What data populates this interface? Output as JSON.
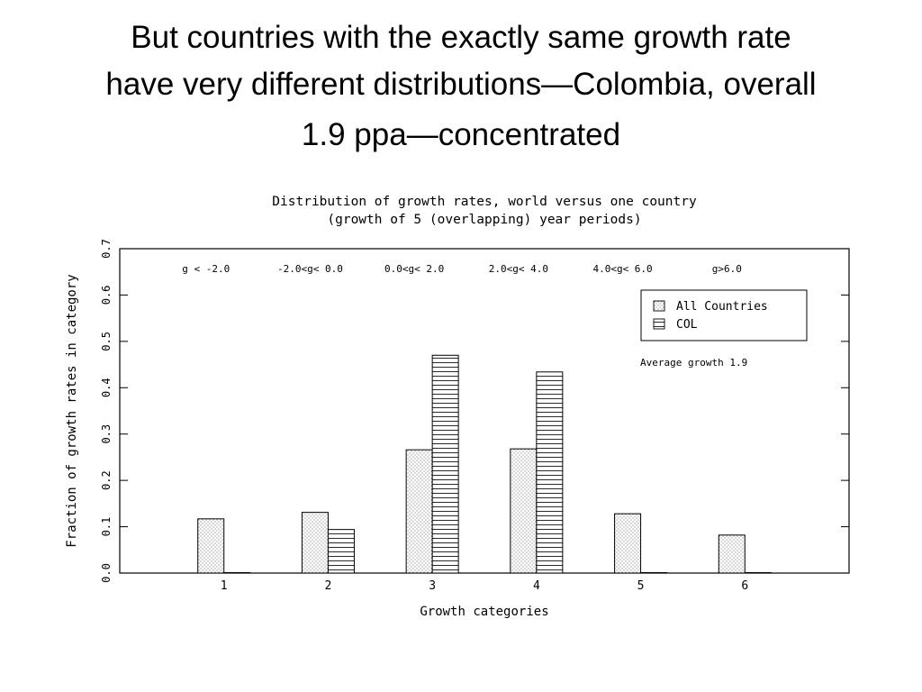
{
  "slide": {
    "title_lines": [
      "But countries with the exactly same growth rate",
      "have very different distributions—Colombia, overall",
      "1.9 ppa—concentrated"
    ]
  },
  "chart_data": {
    "type": "bar",
    "title": "Distribution of growth rates, world versus one country",
    "subtitle": "(growth of 5 (overlapping) year periods)",
    "xlabel": "Growth categories",
    "ylabel": "Fraction of growth rates in category",
    "categories": [
      "1",
      "2",
      "3",
      "4",
      "5",
      "6"
    ],
    "category_ranges": [
      "g < -2.0",
      "-2.0<g< 0.0",
      "0.0<g< 2.0",
      "2.0<g< 4.0",
      "4.0<g< 6.0",
      "g>6.0"
    ],
    "series": [
      {
        "name": "All Countries",
        "pattern": "dots",
        "values": [
          0.117,
          0.131,
          0.266,
          0.268,
          0.128,
          0.082
        ]
      },
      {
        "name": "COL",
        "pattern": "horizontal-lines",
        "values": [
          0.001,
          0.094,
          0.47,
          0.434,
          0.001,
          0.001
        ]
      }
    ],
    "ylim": [
      0,
      0.7
    ],
    "xlim": [
      0,
      7
    ],
    "yticks": [
      "0.0",
      "0.1",
      "0.2",
      "0.3",
      "0.4",
      "0.5",
      "0.6",
      "0.7"
    ],
    "annotation": "Average growth 1.9",
    "legend_position": "top-right",
    "grid": false
  }
}
